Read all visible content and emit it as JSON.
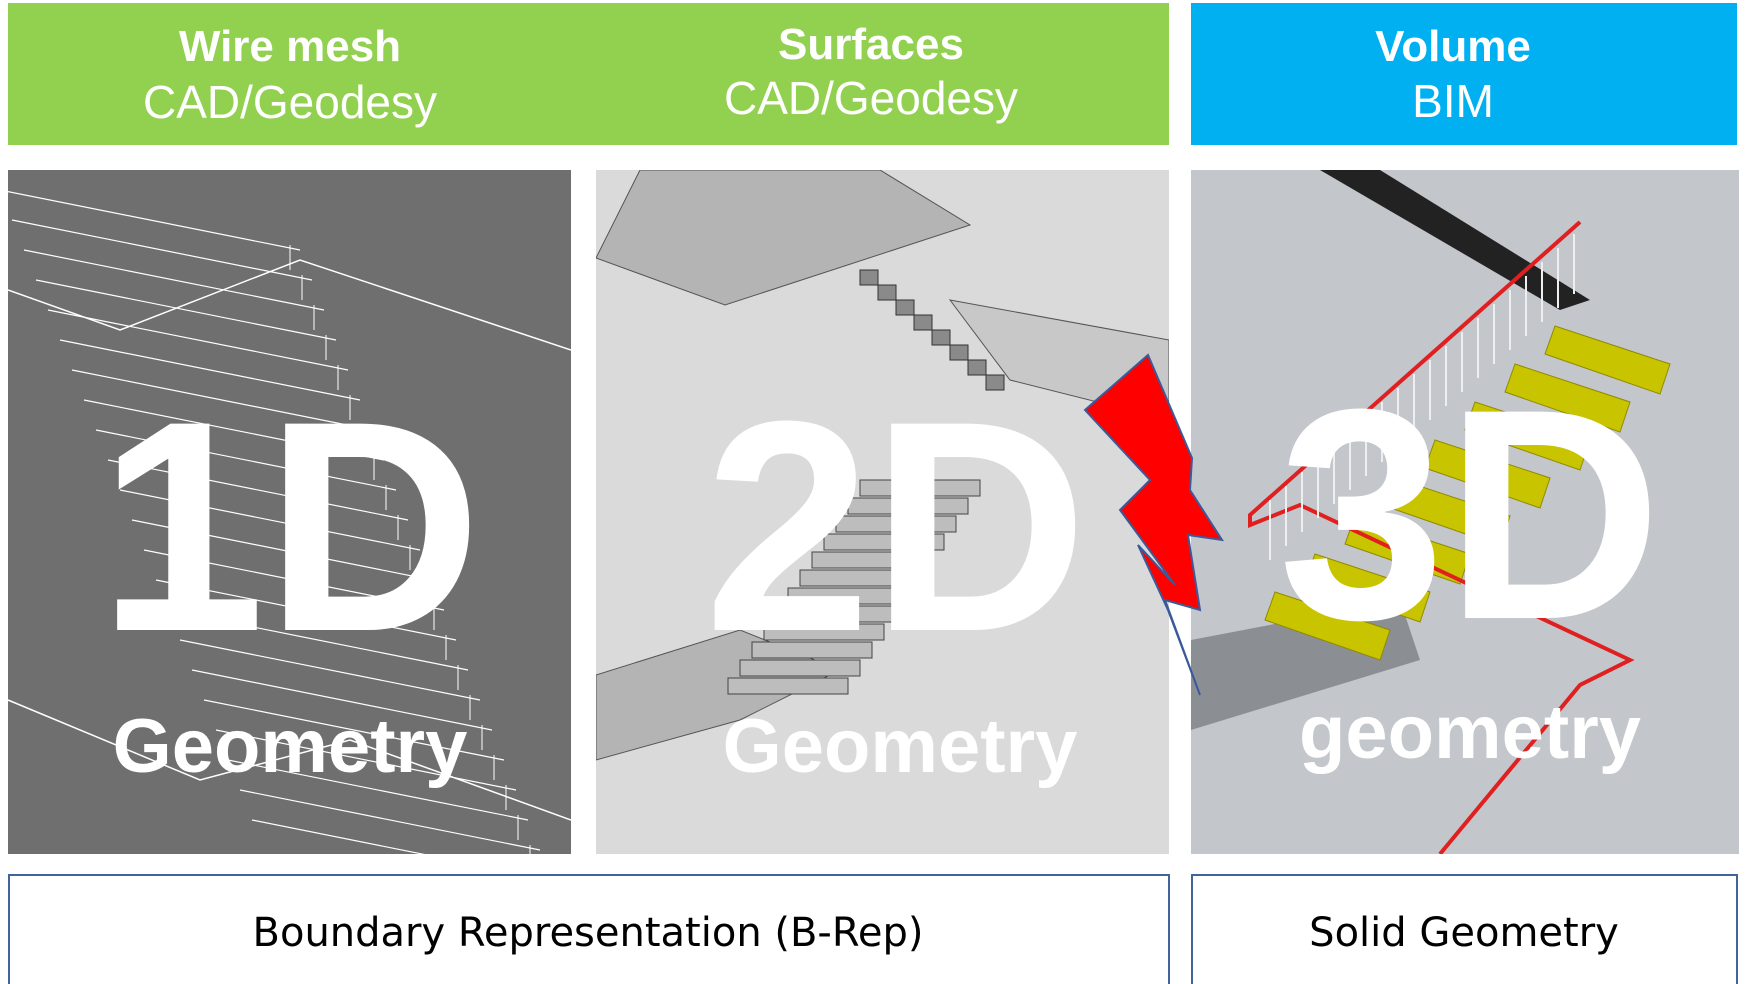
{
  "headers": [
    {
      "title": "Wire mesh",
      "subtitle": "CAD/Geodesy"
    },
    {
      "title": "Surfaces",
      "subtitle": "CAD/Geodesy"
    },
    {
      "title": "Volume",
      "subtitle": "BIM"
    }
  ],
  "panels": [
    {
      "dimension": "1D",
      "label": "Geometry"
    },
    {
      "dimension": "2D",
      "label": "Geometry"
    },
    {
      "dimension": "3D",
      "label": "geometry"
    }
  ],
  "footer": [
    "Boundary Representation (B-Rep)",
    "Solid Geometry"
  ]
}
